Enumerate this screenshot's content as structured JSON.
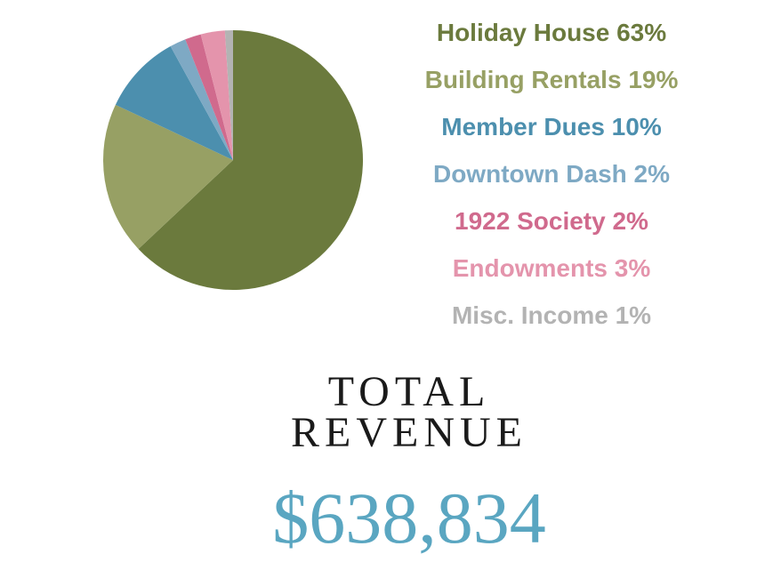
{
  "chart_data": {
    "type": "pie",
    "slices": [
      {
        "label": "Holiday House 63%",
        "value": 63,
        "color": "#6b7a3d"
      },
      {
        "label": "Building Rentals 19%",
        "value": 19,
        "color": "#97a064"
      },
      {
        "label": "Member Dues 10%",
        "value": 10,
        "color": "#4c8fae"
      },
      {
        "label": "Downtown Dash 2%",
        "value": 2,
        "color": "#7ea9c4"
      },
      {
        "label": "1922 Society 2%",
        "value": 2,
        "color": "#d06a8d"
      },
      {
        "label": "Endowments 3%",
        "value": 3,
        "color": "#e494ac"
      },
      {
        "label": "Misc. Income 1%",
        "value": 1,
        "color": "#b3b3b3"
      }
    ],
    "legend_position": "right"
  },
  "total": {
    "label_line1": "TOTAL",
    "label_line2": "REVENUE",
    "value": "$638,834",
    "value_color": "#5aa6c1"
  }
}
